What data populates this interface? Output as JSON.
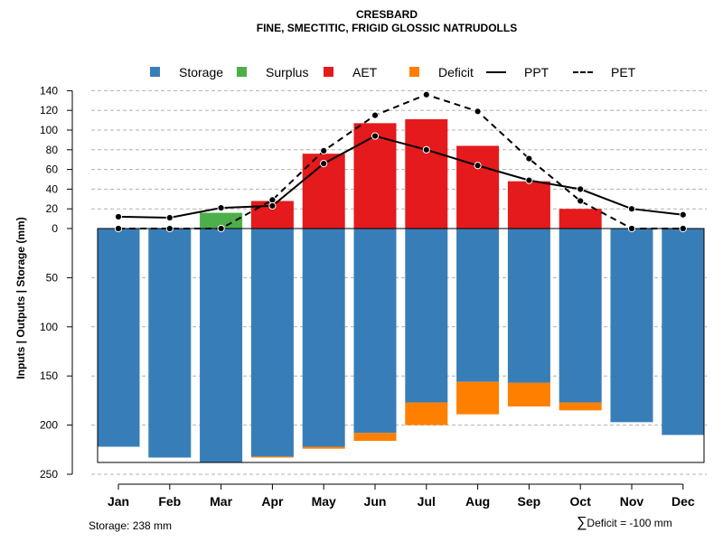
{
  "title": "CRESBARD",
  "subtitle": "FINE, SMECTITIC, FRIGID GLOSSIC NATRUDOLLS",
  "legend": [
    {
      "label": "Storage",
      "color": "#377eb8",
      "kind": "box"
    },
    {
      "label": "Surplus",
      "color": "#4daf4a",
      "kind": "box"
    },
    {
      "label": "AET",
      "color": "#e41a1c",
      "kind": "box"
    },
    {
      "label": "Deficit",
      "color": "#ff7f00",
      "kind": "box"
    },
    {
      "label": "PPT",
      "color": "#000000",
      "kind": "line"
    },
    {
      "label": "PET",
      "color": "#000000",
      "kind": "dashed"
    }
  ],
  "footer": {
    "storage_note": "Storage: 238 mm",
    "deficit_symbol": "∑",
    "deficit_note": "Deficit = -100 mm"
  },
  "chart_data": {
    "type": "bar",
    "ylabel": "Inputs | Outputs | Storage     (mm)",
    "categories": [
      "Jan",
      "Feb",
      "Mar",
      "Apr",
      "May",
      "Jun",
      "Jul",
      "Aug",
      "Sep",
      "Oct",
      "Nov",
      "Dec"
    ],
    "ylim": [
      -250,
      140
    ],
    "y_ticks_upper": [
      0,
      20,
      40,
      60,
      80,
      100,
      120,
      140
    ],
    "y_ticks_lower": [
      50,
      100,
      150,
      200,
      250
    ],
    "storage_capacity": 238,
    "storage": [
      222,
      233,
      238,
      232,
      222,
      208,
      177,
      156,
      157,
      177,
      197,
      210
    ],
    "surplus": [
      0,
      0,
      16,
      0,
      0,
      0,
      0,
      0,
      0,
      0,
      0,
      0
    ],
    "aet": [
      0,
      0,
      0,
      28,
      76,
      107,
      111,
      84,
      48,
      20,
      0,
      0
    ],
    "deficit": [
      0,
      0,
      0,
      1,
      2,
      8,
      23,
      33,
      24,
      8,
      0,
      0
    ],
    "ppt": [
      12,
      11,
      21,
      23,
      66,
      94,
      80,
      64,
      49,
      40,
      20,
      14
    ],
    "pet": [
      0,
      0,
      0,
      29,
      79,
      115,
      136,
      119,
      71,
      28,
      0,
      0
    ],
    "grid": true,
    "colors": {
      "storage": "#377eb8",
      "surplus": "#4daf4a",
      "aet": "#e41a1c",
      "deficit": "#ff7f00",
      "grid": "#b0b0b0"
    }
  }
}
